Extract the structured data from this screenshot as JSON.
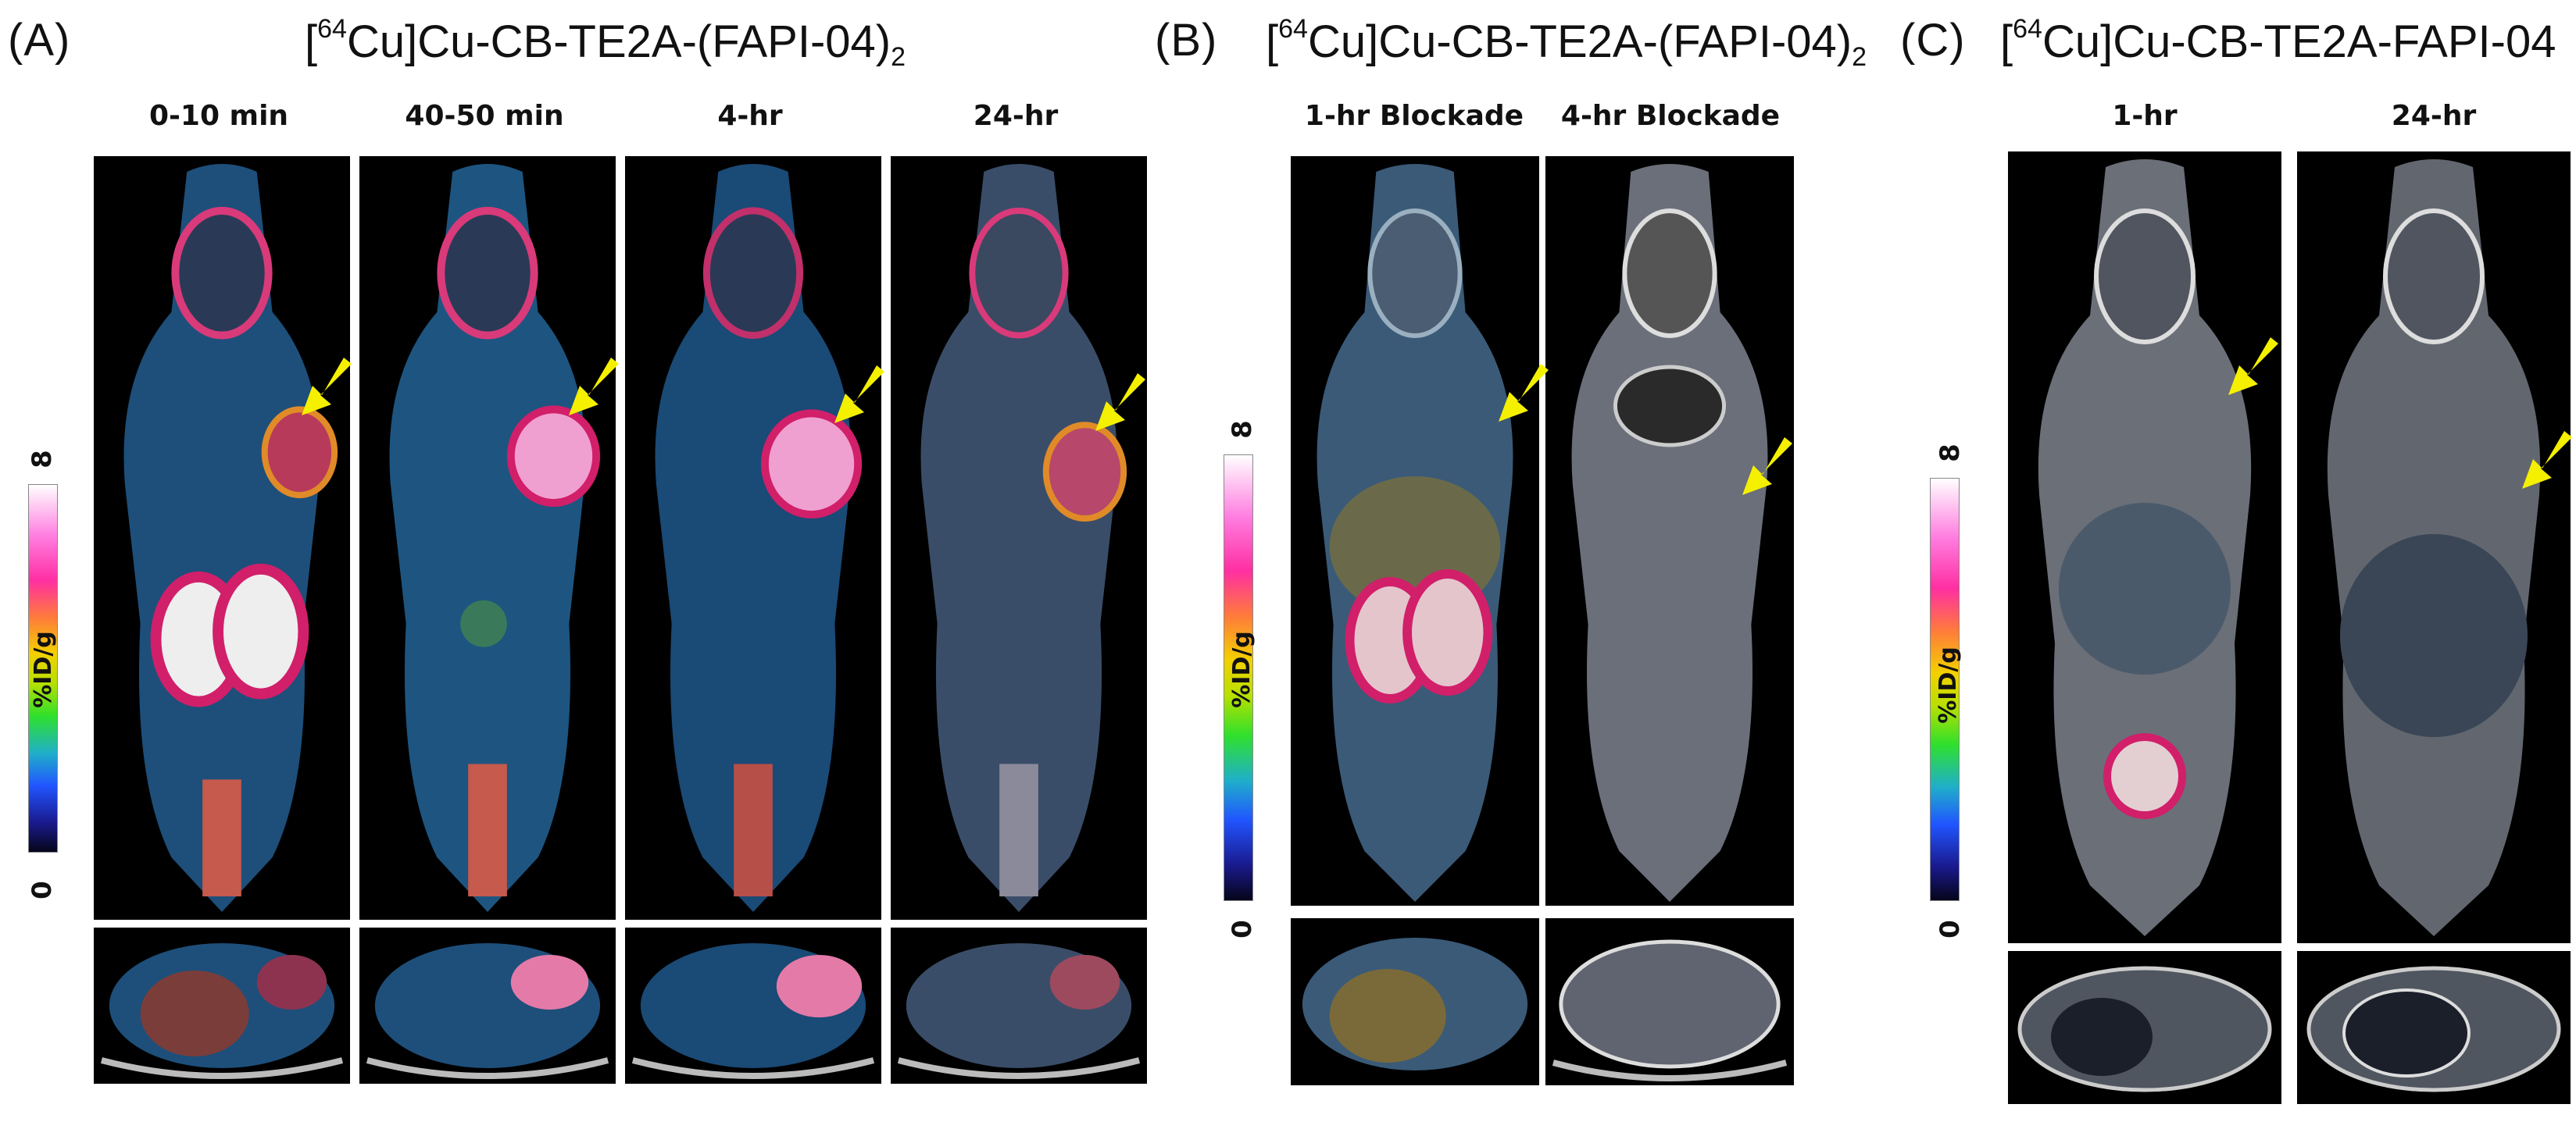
{
  "panels": {
    "A": {
      "letter": "(A)",
      "title_prefix": "[",
      "isotope_mass": "64",
      "title_main": "Cu]Cu-CB-TE2A-(FAPI-04)",
      "title_subscript": "2",
      "columns": [
        "0-10 min",
        "40-50 min",
        "4-hr",
        "24-hr"
      ],
      "colorbar": {
        "max": "8",
        "min": "0",
        "unit": "%ID/g"
      }
    },
    "B": {
      "letter": "(B)",
      "title_prefix": "[",
      "isotope_mass": "64",
      "title_main": "Cu]Cu-CB-TE2A-(FAPI-04)",
      "title_subscript": "2",
      "columns": [
        "1-hr Blockade",
        "4-hr Blockade"
      ],
      "colorbar": {
        "max": "8",
        "min": "0",
        "unit": "%ID/g"
      }
    },
    "C": {
      "letter": "(C)",
      "title_prefix": "[",
      "isotope_mass": "64",
      "title_main": "Cu]Cu-CB-TE2A-FAPI-04",
      "title_subscript": "",
      "columns": [
        "1-hr",
        "24-hr"
      ],
      "colorbar": {
        "max": "8",
        "min": "0",
        "unit": "%ID/g"
      }
    }
  },
  "colors": {
    "arrow": "#f5f000",
    "background": "#ffffff",
    "scan_background": "#000000"
  },
  "icons": [
    "tumor-arrow-icon"
  ]
}
